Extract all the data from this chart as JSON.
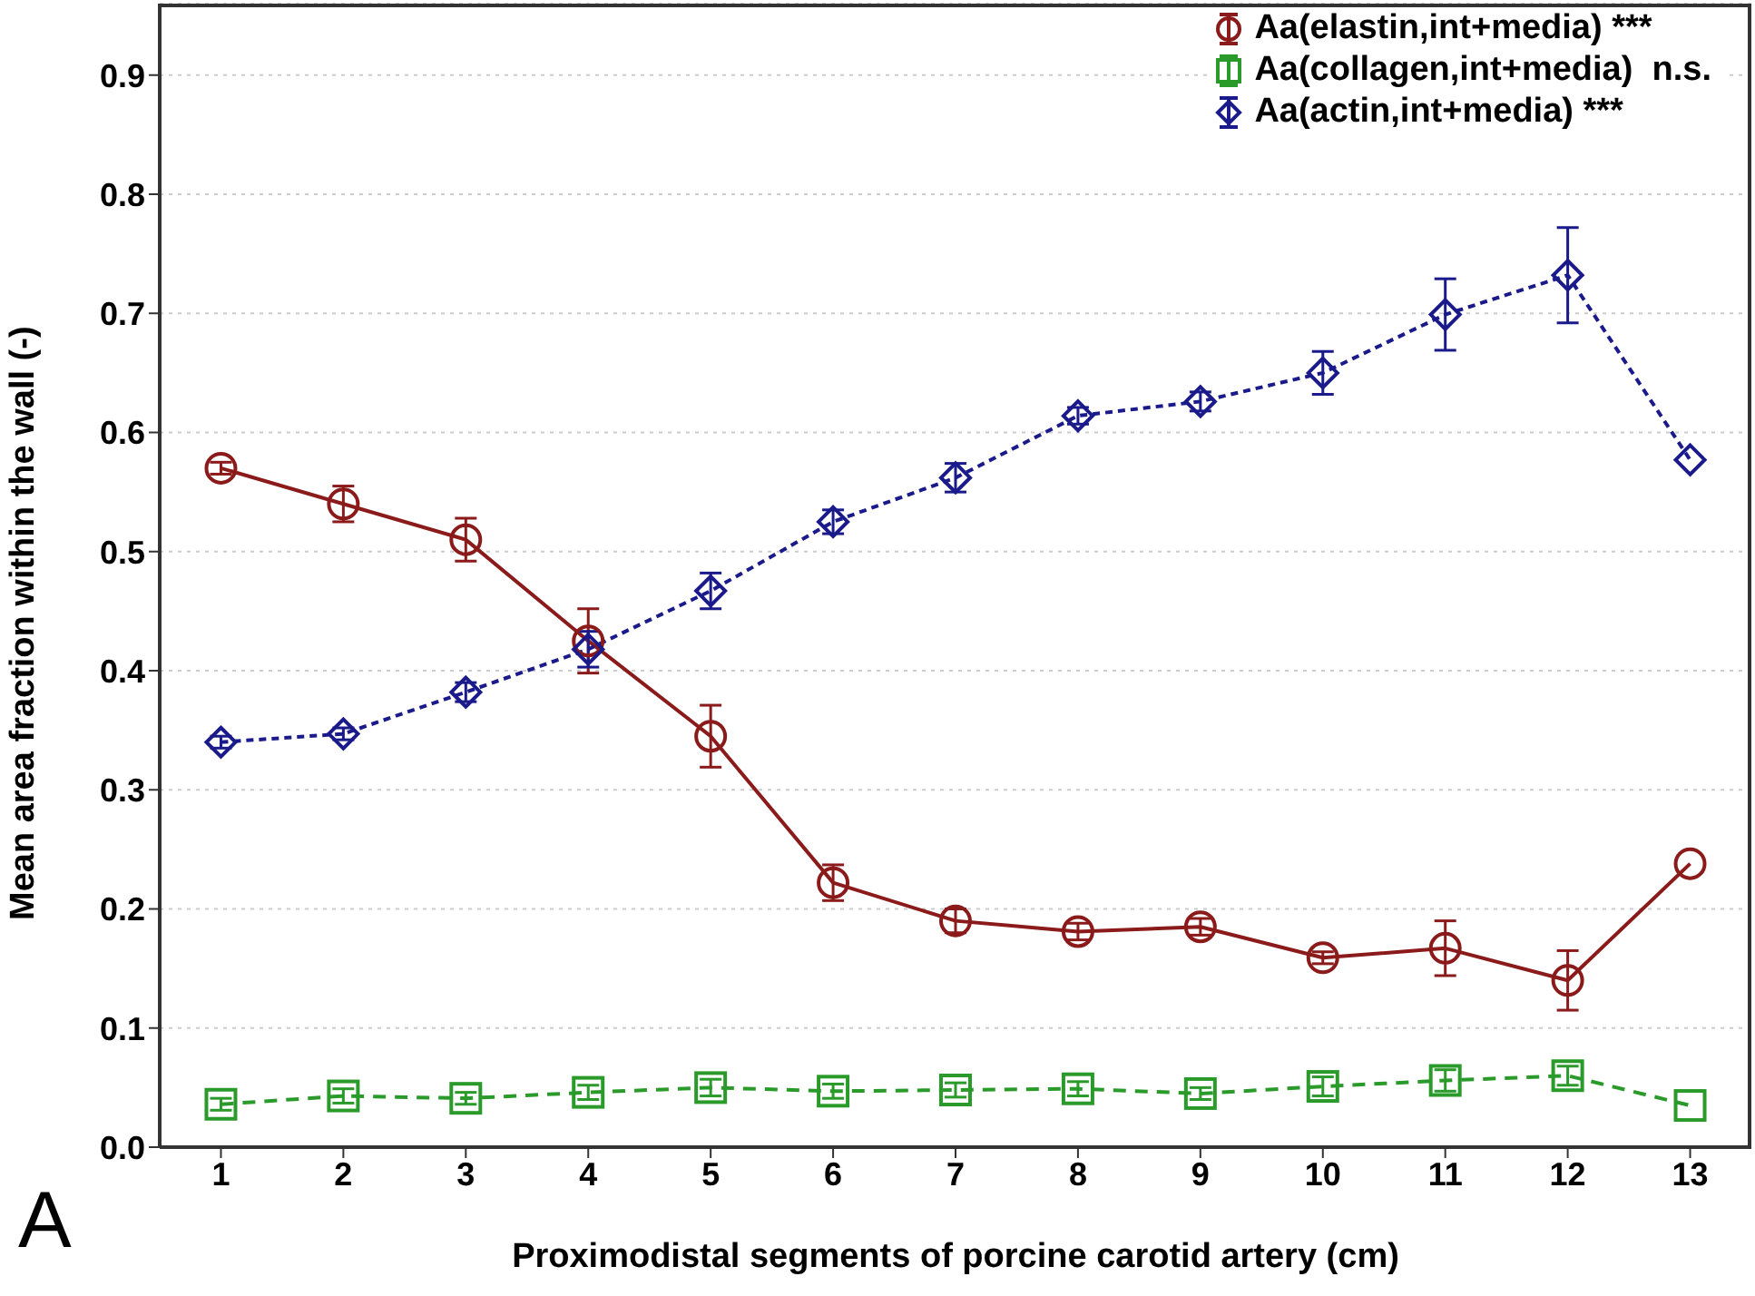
{
  "chart_data": {
    "type": "line",
    "xlabel": "Proximodistal segments of porcine carotid artery (cm)",
    "ylabel": "Mean area fraction within the wall (-)",
    "annotations": [
      "A"
    ],
    "x": [
      1,
      2,
      3,
      4,
      5,
      6,
      7,
      8,
      9,
      10,
      11,
      12,
      13
    ],
    "series": [
      {
        "name": "Aa(elastin,int+media) ***",
        "color": "#8b1a1a",
        "marker": "circle",
        "line_style": "solid",
        "values": [
          0.57,
          0.54,
          0.51,
          0.425,
          0.345,
          0.222,
          0.19,
          0.181,
          0.185,
          0.159,
          0.167,
          0.14,
          0.238
        ],
        "errors": [
          0.005,
          0.015,
          0.018,
          0.027,
          0.026,
          0.015,
          0.01,
          0.007,
          0.007,
          0.005,
          0.023,
          0.025,
          null
        ]
      },
      {
        "name": "Aa(collagen,int+media)  n.s.",
        "color": "#2a9a2a",
        "marker": "square",
        "line_style": "dashed",
        "values": [
          0.036,
          0.043,
          0.041,
          0.046,
          0.05,
          0.047,
          0.048,
          0.049,
          0.045,
          0.051,
          0.056,
          0.06,
          0.035
        ],
        "errors": [
          0.005,
          0.006,
          0.005,
          0.006,
          0.007,
          0.006,
          0.006,
          0.006,
          0.005,
          0.008,
          0.009,
          0.008,
          null
        ]
      },
      {
        "name": "Aa(actin,int+media) ***",
        "color": "#1a1a8b",
        "marker": "diamond",
        "line_style": "dotted",
        "values": [
          0.34,
          0.347,
          0.382,
          0.418,
          0.467,
          0.525,
          0.562,
          0.614,
          0.626,
          0.65,
          0.699,
          0.732,
          0.577
        ],
        "errors": [
          0.005,
          0.005,
          0.008,
          0.015,
          0.015,
          0.01,
          0.012,
          0.007,
          0.008,
          0.018,
          0.03,
          0.04,
          null
        ]
      }
    ],
    "xlim": [
      0.5,
      13.5
    ],
    "xticks": [
      1,
      2,
      3,
      4,
      5,
      6,
      7,
      8,
      9,
      10,
      11,
      12,
      13
    ],
    "ylim": [
      0,
      0.96
    ],
    "yticks": [
      {
        "value": 0,
        "label": "0.0"
      },
      {
        "value": 0.1,
        "label": "0.1"
      },
      {
        "value": 0.2,
        "label": "0.2"
      },
      {
        "value": 0.3,
        "label": "0.3"
      },
      {
        "value": 0.4,
        "label": "0.4"
      },
      {
        "value": 0.5,
        "label": "0.5"
      },
      {
        "value": 0.6,
        "label": "0.6"
      },
      {
        "value": 0.7,
        "label": "0.7"
      },
      {
        "value": 0.8,
        "label": "0.8"
      },
      {
        "value": 0.9,
        "label": "0.9"
      }
    ],
    "grid": "y",
    "legend": "top right"
  }
}
